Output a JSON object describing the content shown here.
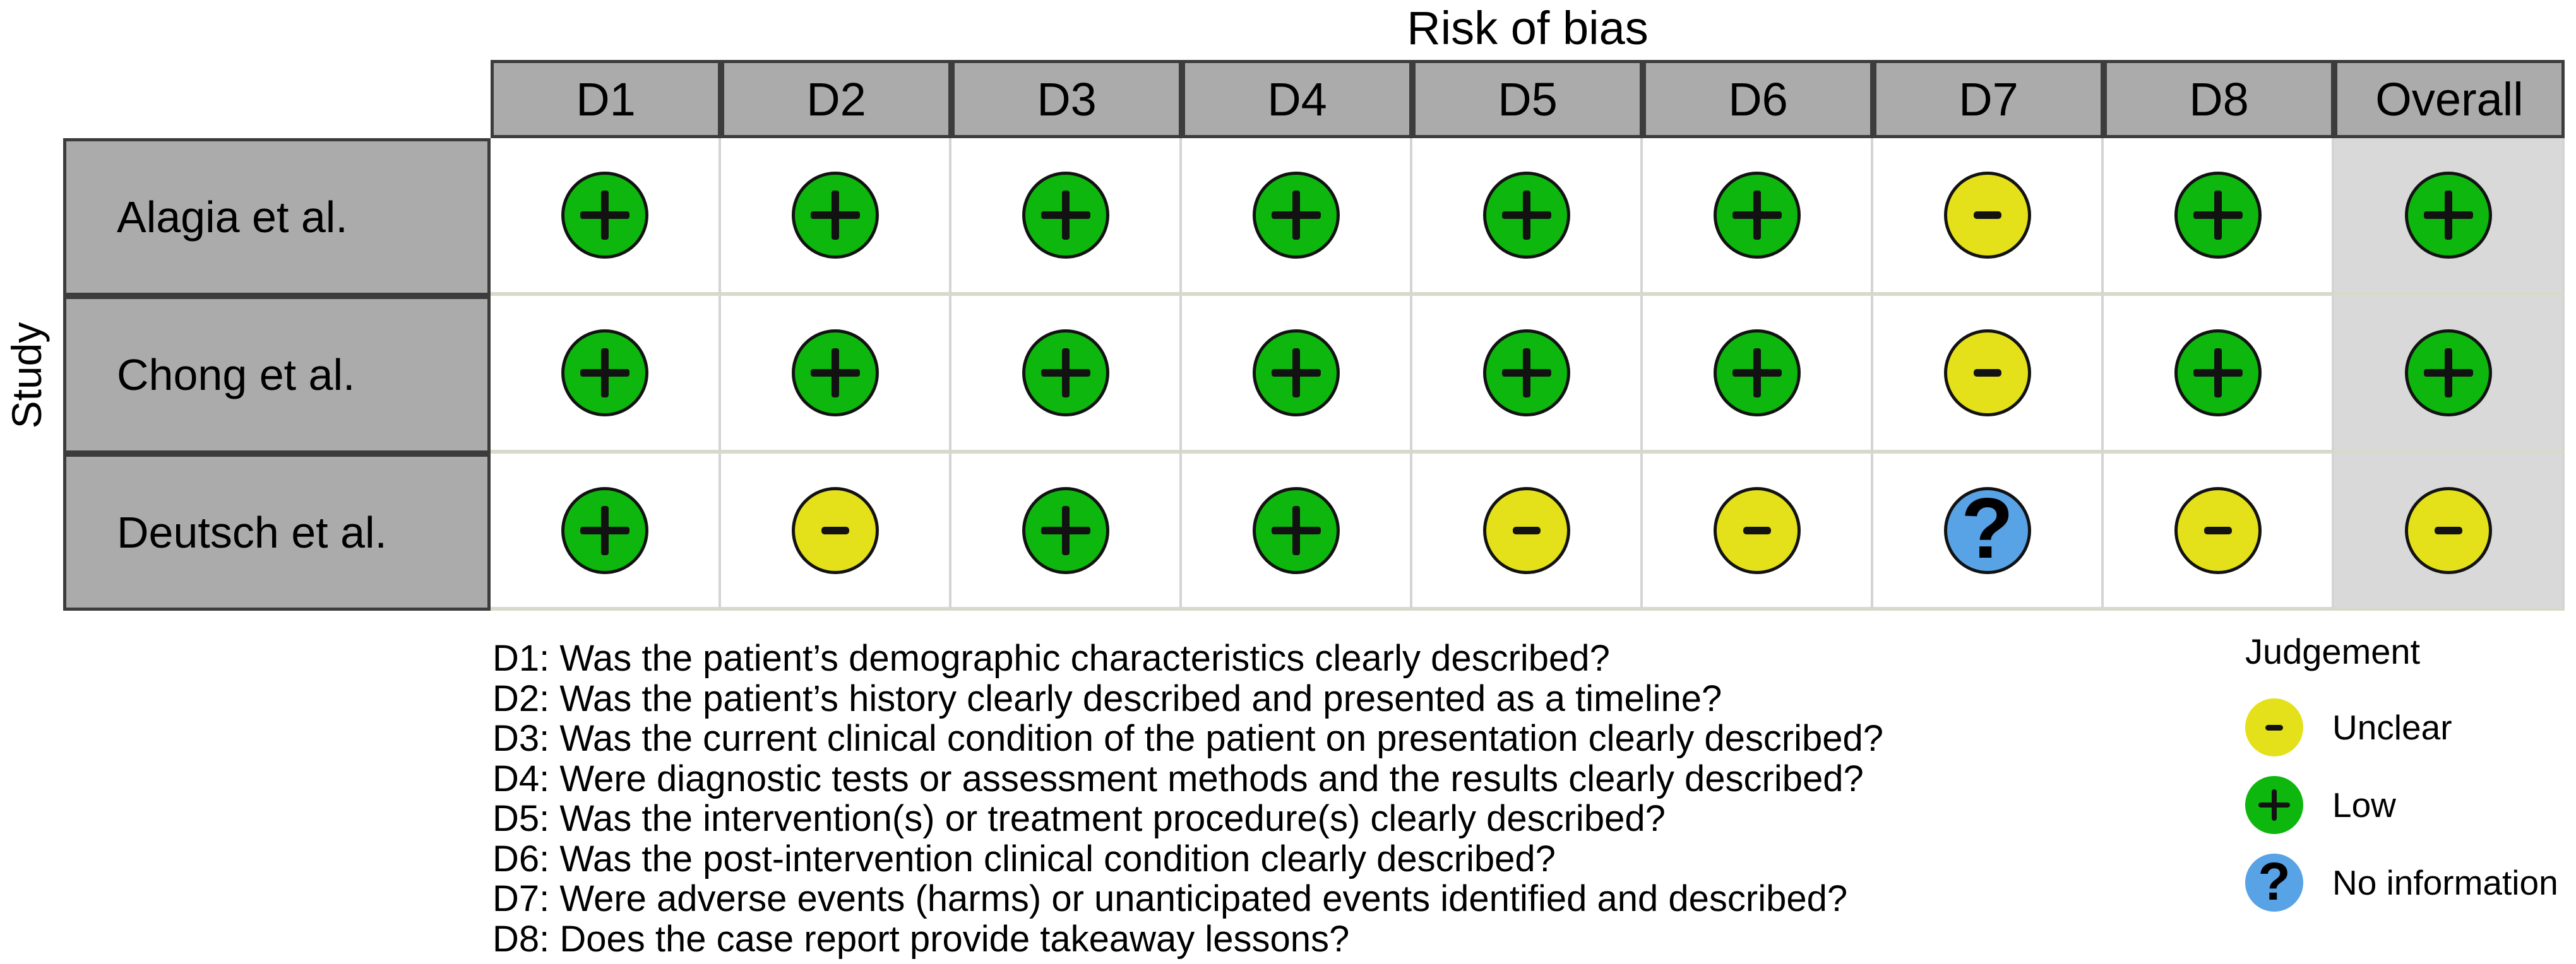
{
  "figure": {
    "title": "Risk of bias",
    "row_axis_label": "Study",
    "legend_title": "Judgement"
  },
  "chart_data": {
    "type": "table",
    "title": "Risk of bias",
    "columns": [
      "D1",
      "D2",
      "D3",
      "D4",
      "D5",
      "D6",
      "D7",
      "D8",
      "Overall"
    ],
    "rows": [
      {
        "study": "Alagia et al.",
        "judgements": [
          "low",
          "low",
          "low",
          "low",
          "low",
          "low",
          "unclear",
          "low",
          "low"
        ]
      },
      {
        "study": "Chong et al.",
        "judgements": [
          "low",
          "low",
          "low",
          "low",
          "low",
          "low",
          "unclear",
          "low",
          "low"
        ]
      },
      {
        "study": "Deutsch et al.",
        "judgements": [
          "low",
          "unclear",
          "low",
          "low",
          "unclear",
          "unclear",
          "no-information",
          "unclear",
          "unclear"
        ]
      }
    ],
    "legend": [
      {
        "judgement": "unclear",
        "label": "Unclear"
      },
      {
        "judgement": "low",
        "label": "Low"
      },
      {
        "judgement": "no-information",
        "label": "No information"
      }
    ],
    "footnotes": [
      "D1: Was the patient’s demographic characteristics clearly described?",
      "D2: Was the patient’s history clearly described and presented as a timeline?",
      "D3: Was the current clinical condition of the patient on presentation clearly described?",
      "D4: Were diagnostic tests or assessment methods and the results clearly described?",
      "D5: Was the intervention(s) or treatment procedure(s) clearly described?",
      "D6: Was the post-intervention clinical condition clearly described?",
      "D7: Were adverse events (harms) or unanticipated events identified and described?",
      "D8: Does the case report provide takeaway lessons?"
    ]
  },
  "styles": {
    "judgements": {
      "low": {
        "color": "#0db70d",
        "symbol": "plus",
        "glyph": "+"
      },
      "unclear": {
        "color": "#e4e01a",
        "symbol": "minus",
        "glyph": "-"
      },
      "no-information": {
        "color": "#58a2e6",
        "symbol": "question",
        "glyph": "?"
      }
    },
    "header_bg": "#ababab",
    "overall_column_bg": "#d9d9d9",
    "cell_border_dark": "#3c3c3c",
    "grid_line_light": "#d4d4d4"
  }
}
